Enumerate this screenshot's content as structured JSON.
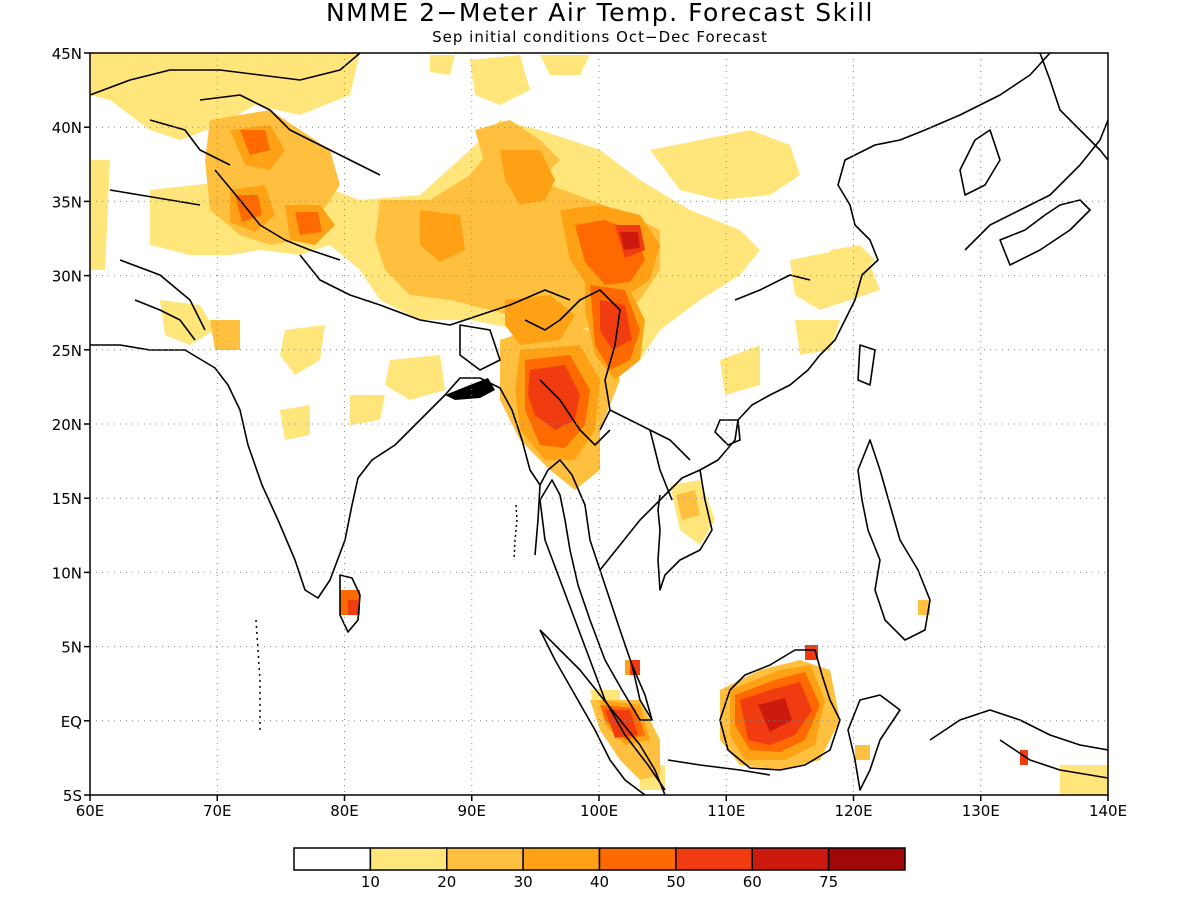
{
  "title": "NMME 2−Meter Air Temp. Forecast Skill",
  "subtitle": "Sep initial conditions   Oct−Dec Forecast",
  "map": {
    "lon_range": [
      60,
      140
    ],
    "lat_range": [
      -5,
      45
    ],
    "gridlines": "dotted",
    "lon_ticks": [
      "60E",
      "70E",
      "80E",
      "90E",
      "100E",
      "110E",
      "120E",
      "130E",
      "140E"
    ],
    "lat_ticks": [
      "45N",
      "40N",
      "35N",
      "30N",
      "25N",
      "20N",
      "15N",
      "10N",
      "5N",
      "EQ",
      "5S"
    ]
  },
  "legend": {
    "labels": [
      "10",
      "20",
      "30",
      "40",
      "50",
      "60",
      "75"
    ],
    "colors": [
      "#ffffff",
      "#ffe57a",
      "#ffc03f",
      "#ffa114",
      "#ff6a00",
      "#f03c10",
      "#cc1a0e",
      "#a00808"
    ]
  }
}
